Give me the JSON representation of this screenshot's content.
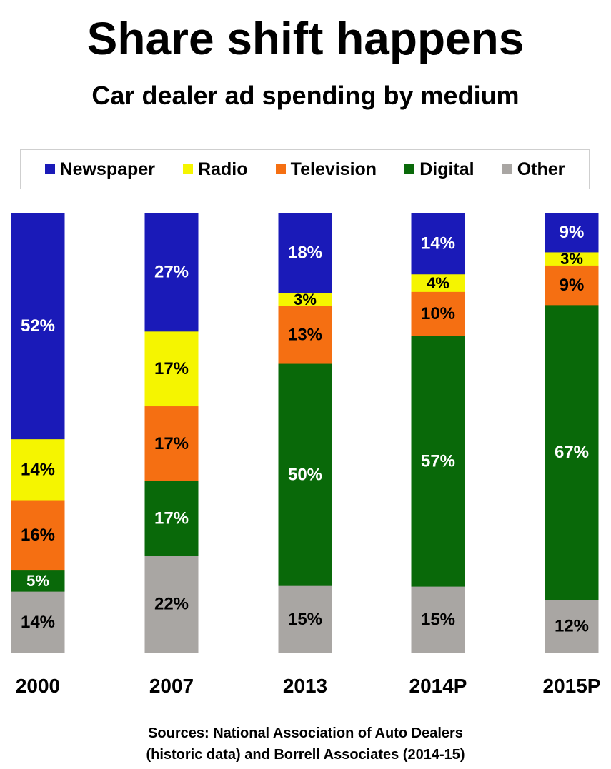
{
  "title": "Share shift happens",
  "subtitle": "Car dealer ad spending by medium",
  "sources": {
    "line1": "Sources: National Association of Auto Dealers",
    "line2": "(historic data) and Borrell Associates (2014-15)"
  },
  "chart_data": {
    "type": "bar",
    "stacked": true,
    "title": "Share shift happens",
    "subtitle": "Car dealer ad spending by medium",
    "categories": [
      "2000",
      "2007",
      "2013",
      "2014P",
      "2015P"
    ],
    "legend_position": "top",
    "series": [
      {
        "name": "Newspaper",
        "color": "#1a1ab8",
        "label_color": "#ffffff",
        "values": [
          52,
          27,
          18,
          14,
          9
        ]
      },
      {
        "name": "Radio",
        "color": "#f5f500",
        "label_color": "#000000",
        "values": [
          14,
          17,
          3,
          4,
          3
        ]
      },
      {
        "name": "Television",
        "color": "#f56f12",
        "label_color": "#000000",
        "values": [
          16,
          17,
          13,
          10,
          9
        ]
      },
      {
        "name": "Digital",
        "color": "#096909",
        "label_color": "#ffffff",
        "values": [
          5,
          17,
          50,
          57,
          67
        ]
      },
      {
        "name": "Other",
        "color": "#a9a6a3",
        "label_color": "#000000",
        "values": [
          14,
          22,
          15,
          15,
          12
        ]
      }
    ]
  }
}
